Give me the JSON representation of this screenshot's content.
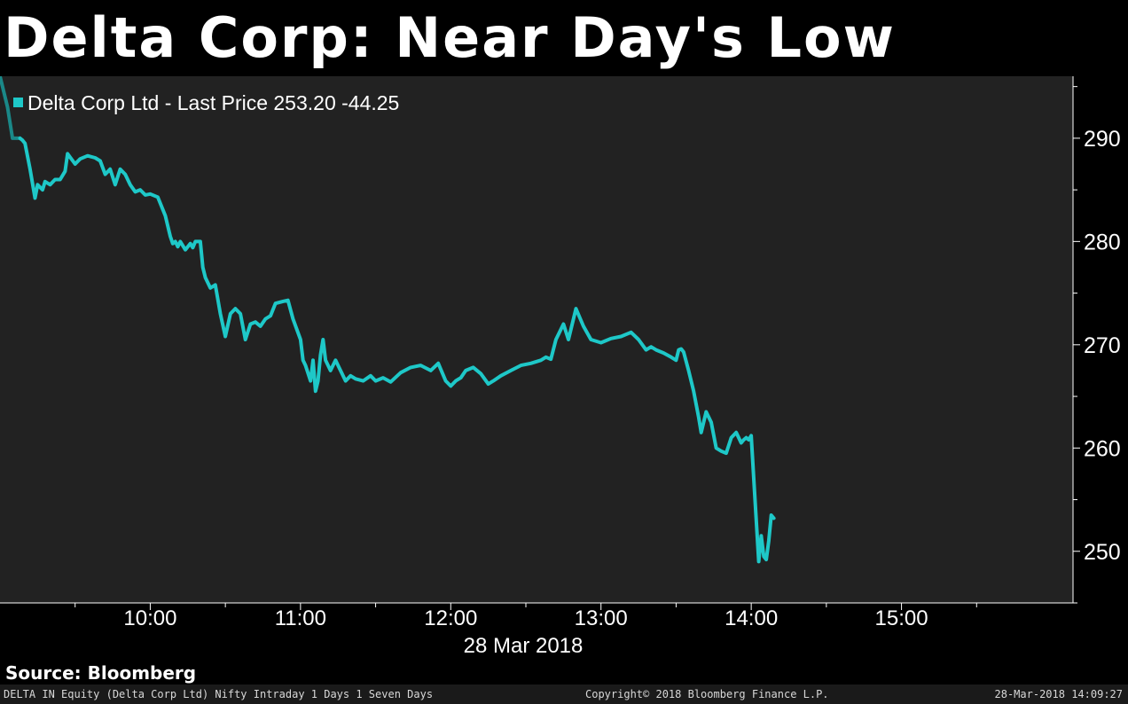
{
  "title": "Delta Corp: Near Day's Low",
  "source": "Source: Bloomberg",
  "footer": {
    "left": "DELTA IN Equity (Delta Corp Ltd) Nifty Intraday 1 Days 1 Seven Days",
    "center": "Copyright© 2018 Bloomberg Finance L.P.",
    "right": "28-Mar-2018 14:09:27"
  },
  "colors": {
    "background": "#000000",
    "plot_background": "#222222",
    "line": "#1ec8c8",
    "line_start": "#1a8888",
    "text": "#ffffff"
  },
  "chart_data": {
    "type": "line",
    "legend": "Delta Corp Ltd - Last Price 253.20 -44.25",
    "date_label": "28 Mar 2018",
    "x_unit": "time of day",
    "x_range": [
      "09:00",
      "16:00"
    ],
    "x_ticks": [
      "10:00",
      "11:00",
      "12:00",
      "13:00",
      "14:00",
      "15:00"
    ],
    "y_ticks": [
      250,
      260,
      270,
      280,
      290
    ],
    "ylim": [
      245,
      296
    ],
    "grid": false,
    "legend_position": "top-left",
    "series": [
      {
        "x": [
          "09:00",
          "09:03",
          "09:05",
          "09:08",
          "09:09",
          "09:10",
          "09:12",
          "09:14",
          "09:15",
          "09:17",
          "09:18",
          "09:20",
          "09:22",
          "09:24",
          "09:26",
          "09:27",
          "09:30",
          "09:32",
          "09:35",
          "09:38",
          "09:40",
          "09:42",
          "09:44",
          "09:46",
          "09:48",
          "09:50",
          "09:52",
          "09:54",
          "09:56",
          "09:58",
          "10:00",
          "10:03",
          "10:06",
          "10:08",
          "10:09",
          "10:10",
          "10:11",
          "10:12",
          "10:14",
          "10:16",
          "10:17",
          "10:18",
          "10:20",
          "10:21",
          "10:22",
          "10:24",
          "10:26",
          "10:28",
          "10:30",
          "10:32",
          "10:34",
          "10:36",
          "10:38",
          "10:40",
          "10:42",
          "10:44",
          "10:46",
          "10:48",
          "10:50",
          "10:53",
          "10:55",
          "10:57",
          "11:00",
          "11:01",
          "11:02",
          "11:04",
          "11:05",
          "11:06",
          "11:07",
          "11:08",
          "11:09",
          "11:10",
          "11:12",
          "11:14",
          "11:16",
          "11:18",
          "11:20",
          "11:22",
          "11:25",
          "11:28",
          "11:30",
          "11:33",
          "11:36",
          "11:40",
          "11:44",
          "11:48",
          "11:52",
          "11:55",
          "11:58",
          "12:00",
          "12:02",
          "12:04",
          "12:06",
          "12:09",
          "12:12",
          "12:15",
          "12:17",
          "12:20",
          "12:24",
          "12:28",
          "12:32",
          "12:36",
          "12:38",
          "12:40",
          "12:42",
          "12:45",
          "12:47",
          "12:50",
          "12:53",
          "12:56",
          "13:00",
          "13:04",
          "13:08",
          "13:12",
          "13:15",
          "13:18",
          "13:20",
          "13:22",
          "13:25",
          "13:28",
          "13:30",
          "13:31",
          "13:32",
          "13:33",
          "13:35",
          "13:37",
          "13:39",
          "13:40",
          "13:42",
          "13:44",
          "13:46",
          "13:48",
          "13:50",
          "13:52",
          "13:54",
          "13:56",
          "13:57",
          "13:58",
          "13:59",
          "14:00",
          "14:01",
          "14:02",
          "14:03",
          "14:04",
          "14:05",
          "14:06",
          "14:07",
          "14:08",
          "14:09"
        ],
        "y": [
          296,
          293,
          290,
          290,
          289.8,
          289.5,
          287,
          284.2,
          285.5,
          285,
          285.8,
          285.5,
          286,
          286,
          286.8,
          288.5,
          287.5,
          288,
          288.3,
          288.1,
          287.8,
          286.5,
          287,
          285.5,
          287,
          286.5,
          285.5,
          284.8,
          285,
          284.5,
          284.6,
          284.3,
          282.5,
          280.5,
          279.8,
          280,
          279.5,
          280,
          279.2,
          279.8,
          279.4,
          280,
          280,
          277.5,
          276.5,
          275.5,
          275.8,
          273,
          270.8,
          273,
          273.5,
          273,
          270.5,
          272,
          272.2,
          271.8,
          272.5,
          272.8,
          274,
          274.2,
          274.3,
          272.5,
          270.5,
          268.5,
          268,
          266.5,
          268.5,
          265.5,
          266.5,
          269,
          270.5,
          268.5,
          267.5,
          268.5,
          267.5,
          266.5,
          267,
          266.7,
          266.5,
          267,
          266.5,
          266.8,
          266.4,
          267.3,
          267.8,
          268,
          267.5,
          268.2,
          266.5,
          266,
          266.5,
          266.8,
          267.5,
          267.8,
          267.2,
          266.2,
          266.5,
          267,
          267.5,
          268,
          268.2,
          268.5,
          268.8,
          268.6,
          270.5,
          272,
          270.5,
          273.5,
          271.8,
          270.5,
          270.2,
          270.6,
          270.8,
          271.2,
          270.5,
          269.5,
          269.8,
          269.5,
          269.2,
          268.8,
          268.5,
          269.5,
          269.6,
          269.3,
          267.5,
          265.5,
          263,
          261.5,
          263.5,
          262.5,
          260,
          259.7,
          259.5,
          261,
          261.5,
          260.5,
          260.8,
          261,
          260.8,
          261.2,
          257,
          253,
          249,
          251.5,
          249.5,
          249.2,
          251,
          253.5,
          253.2
        ]
      }
    ]
  }
}
